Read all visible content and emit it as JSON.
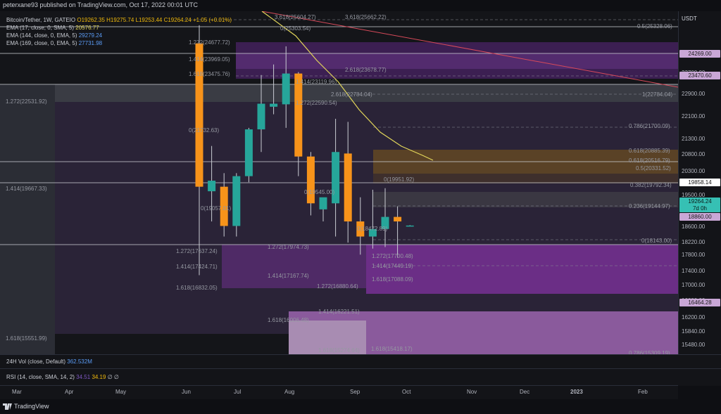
{
  "header": {
    "publisher": "peterxane93 published on TradingView.com, Oct 17, 2022 00:01 UTC"
  },
  "legend": {
    "title": "Bitcoin/Tether, 1W, GATEIO",
    "ohlc": "O19262.35  H19275.74  L19253.44  C19264.24  +1.05 (+0.01%)",
    "ema1_label": "EMA (17, close, 0, SMA, 5)",
    "ema1_value": "20576.77",
    "ema2_label": "EMA (144, close, 0, EMA, 5)",
    "ema2_value": "29279.24",
    "ema3_label": "EMA (169, close, 0, EMA, 5)",
    "ema3_value": "27731.98"
  },
  "price_axis": {
    "currency": "USDT",
    "ticks": [
      "23700.00",
      "22900.00",
      "22100.00",
      "21300.00",
      "20800.00",
      "20300.00",
      "19500.00",
      "18600.00",
      "18220.00",
      "17800.00",
      "17400.00",
      "17000.00",
      "16600.00",
      "16200.00",
      "15840.00",
      "15480.00"
    ],
    "tags": [
      {
        "text": "24269.00",
        "bg": "#c9a7d6",
        "fg": "#1a1a1a"
      },
      {
        "text": "23470.60",
        "bg": "#c9a7d6",
        "fg": "#1a1a1a"
      },
      {
        "text": "19858.14",
        "bg": "#ffffff",
        "fg": "#111111"
      },
      {
        "text": "19264.24",
        "bg": "#36c0b4",
        "fg": "#0b1a18"
      },
      {
        "text": "7d 0h",
        "bg": "#36c0b4",
        "fg": "#0b1a18"
      },
      {
        "text": "18860.00",
        "bg": "#c9a7d6",
        "fg": "#1a1a1a"
      },
      {
        "text": "16464.28",
        "bg": "#c9a7d6",
        "fg": "#1a1a1a"
      }
    ]
  },
  "fib_labels": [
    "3.618(25604.27)",
    "3.618(25662.22)",
    "0.5(25328.06)",
    "0(25303.54)",
    "1.272(24677.72)",
    "1.414(23969.05)",
    "1.618(23475.76)",
    "2.618(23678.77)",
    "1.414(23119.96)",
    "2.618(22784.04)",
    "1.272(22590.54)",
    "1(22784.04)",
    "1.272(22531.92)",
    "0(21732.63)",
    "0.786(21700.09)",
    "0.618(20885.39)",
    "0.618(20516.79)",
    "0.5(20331.52)",
    "1.414(19667.33)",
    "0(19545.00)",
    "0.382(19792.34)",
    "0(19951.92)",
    "0(19057.01)",
    "0.236(19144.97)",
    "0(18472.89)",
    "0(18143.00)",
    "1.272(17637.24)",
    "1.272(17974.73)",
    "1.272(17700.48)",
    "1.414(17424.71)",
    "1.414(17449.19)",
    "1.414(17167.74)",
    "1.618(17088.09)",
    "1.618(16832.05)",
    "1.272(16880.64)",
    "1.414(16221.51)",
    "1.618(16006.48)",
    "1.618(15551.99)",
    "1.618(15274.64)",
    "1.618(15418.17)",
    "0.786(15309.19)"
  ],
  "volume": {
    "label": "24H Vol (close, Default)",
    "value": "362.532M"
  },
  "rsi": {
    "label": "RSI (14, close, SMA, 14, 2)",
    "v1": "34.51",
    "v2": "34.19",
    "v3": "∅ ∅"
  },
  "time_axis": [
    "Mar",
    "Apr",
    "May",
    "Jun",
    "Jul",
    "Aug",
    "Sep",
    "Oct",
    "Nov",
    "Dec",
    "2023",
    "Feb"
  ],
  "footer": {
    "brand": "TradingView"
  },
  "colors": {
    "bull": "#26a69a",
    "bear": "#f7931a",
    "ema17": "#e2d65a",
    "ema_red": "#d84a5a",
    "fib_purple": "#7b3fa0",
    "fib_orange": "#c27c2a"
  },
  "candles": [
    {
      "o": 25300,
      "h": 25900,
      "l": 17620,
      "c": 20550
    },
    {
      "o": 20400,
      "h": 21900,
      "l": 19400,
      "c": 20750
    },
    {
      "o": 20550,
      "h": 21000,
      "l": 18900,
      "c": 19250
    },
    {
      "o": 19250,
      "h": 21000,
      "l": 18900,
      "c": 20900
    },
    {
      "o": 20900,
      "h": 22500,
      "l": 20700,
      "c": 22450
    },
    {
      "o": 22450,
      "h": 24250,
      "l": 21700,
      "c": 23300
    },
    {
      "o": 23200,
      "h": 24600,
      "l": 22950,
      "c": 23300
    },
    {
      "o": 23280,
      "h": 25200,
      "l": 22500,
      "c": 24300
    },
    {
      "o": 24300,
      "h": 24350,
      "l": 20900,
      "c": 21550
    },
    {
      "o": 21550,
      "h": 21700,
      "l": 19600,
      "c": 20000
    },
    {
      "o": 19800,
      "h": 20150,
      "l": 19400,
      "c": 20200
    },
    {
      "o": 20000,
      "h": 22800,
      "l": 18900,
      "c": 21700
    },
    {
      "o": 21650,
      "h": 22700,
      "l": 18700,
      "c": 19400
    },
    {
      "o": 19400,
      "h": 20200,
      "l": 18300,
      "c": 18900
    },
    {
      "o": 18900,
      "h": 20450,
      "l": 18500,
      "c": 19150
    },
    {
      "o": 19150,
      "h": 20500,
      "l": 18550,
      "c": 19550
    },
    {
      "o": 19550,
      "h": 19900,
      "l": 18200,
      "c": 19400
    },
    {
      "o": 19262,
      "h": 19276,
      "l": 19253,
      "c": 19264
    }
  ]
}
